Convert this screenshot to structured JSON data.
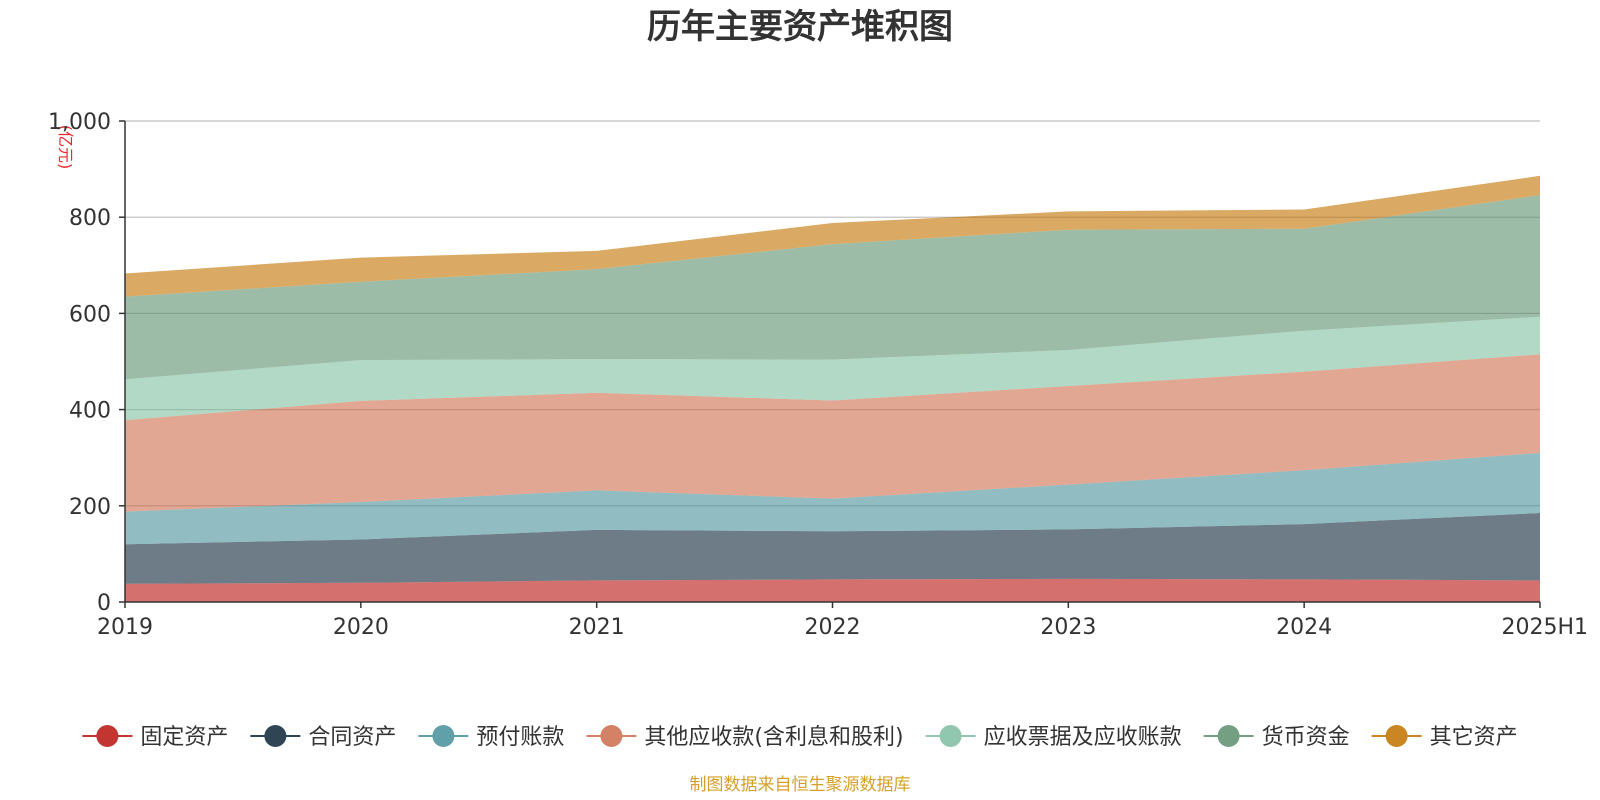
{
  "chart_data": {
    "type": "area",
    "stacked": true,
    "title": "历年主要资产堆积图",
    "unit_label": "(亿元)",
    "x": [
      "2019",
      "2020",
      "2021",
      "2022",
      "2023",
      "2024",
      "2025H1"
    ],
    "ylim": [
      0,
      1000
    ],
    "yticks": [
      "0",
      "200",
      "400",
      "600",
      "800",
      "1,000"
    ],
    "ytick_values": [
      0,
      200,
      400,
      600,
      800,
      1000
    ],
    "grid": true,
    "legend_position": "bottom",
    "series": [
      {
        "name": "固定资产",
        "color": "#c23531",
        "values": [
          38,
          40,
          45,
          47,
          48,
          47,
          45
        ]
      },
      {
        "name": "合同资产",
        "color": "#2f4554",
        "values": [
          82,
          90,
          105,
          100,
          103,
          115,
          140
        ]
      },
      {
        "name": "预付账款",
        "color": "#61a0a8",
        "values": [
          68,
          78,
          82,
          68,
          93,
          112,
          125
        ]
      },
      {
        "name": "其他应收款(含利息和股利)",
        "color": "#d48265",
        "values": [
          190,
          210,
          203,
          204,
          205,
          205,
          205
        ]
      },
      {
        "name": "应收票据及应收账款",
        "color": "#91c7ae",
        "values": [
          85,
          85,
          70,
          85,
          75,
          85,
          78
        ]
      },
      {
        "name": "货币资金",
        "color": "#749f83",
        "values": [
          172,
          163,
          187,
          240,
          250,
          212,
          253
        ]
      },
      {
        "name": "其它资产",
        "color": "#ca8622",
        "values": [
          48,
          50,
          38,
          44,
          38,
          40,
          40
        ]
      }
    ],
    "source": "制图数据来自恒生聚源数据库"
  }
}
